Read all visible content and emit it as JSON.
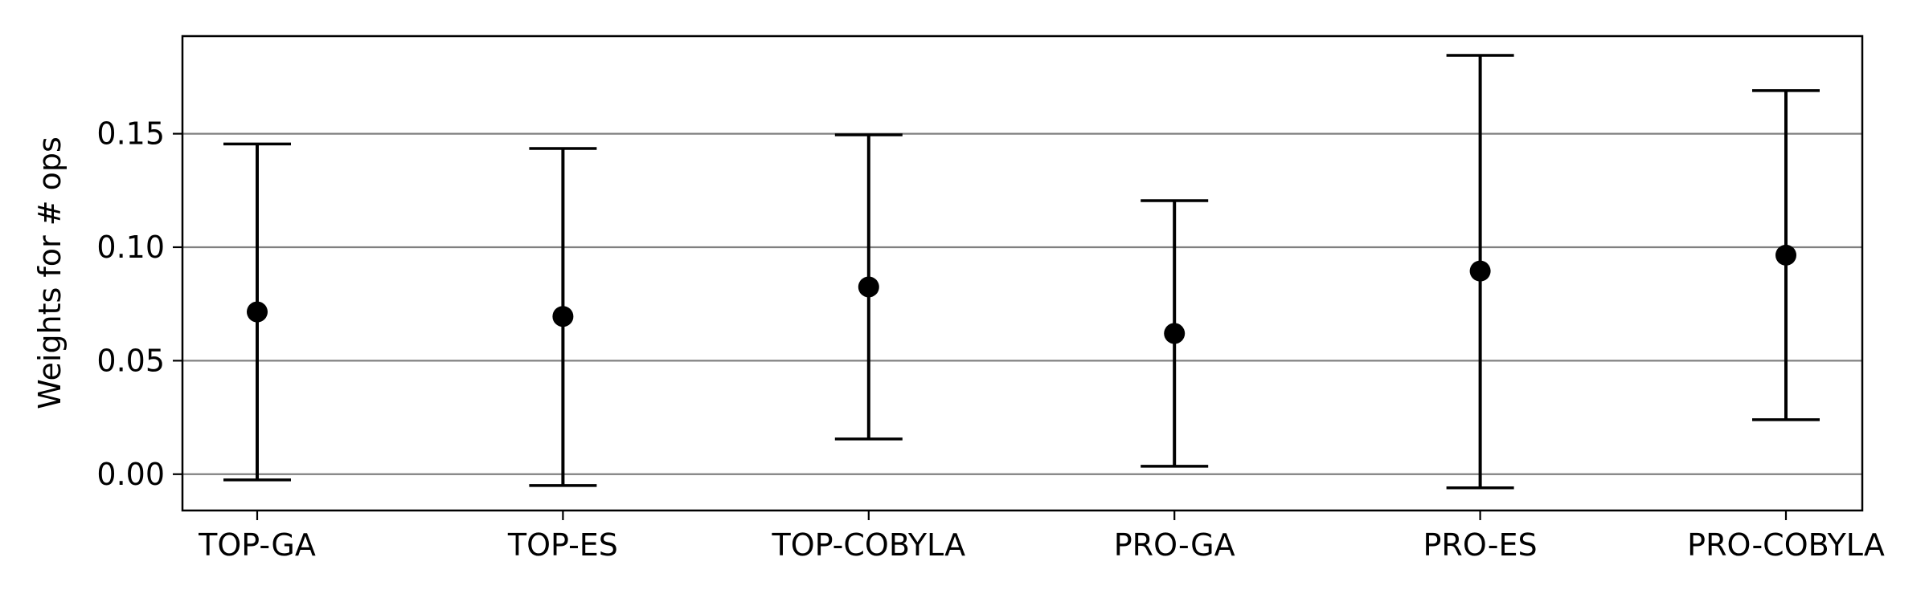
{
  "chart_data": {
    "type": "scatter",
    "subtype": "errorbar",
    "title": "",
    "xlabel": "",
    "ylabel": "Weights for # ops",
    "categories": [
      "TOP-GA",
      "TOP-ES",
      "TOP-COBYLA",
      "PRO-GA",
      "PRO-ES",
      "PRO-COBYLA"
    ],
    "series": [
      {
        "mean": [
          0.0715,
          0.0695,
          0.0825,
          0.062,
          0.0895,
          0.0965
        ],
        "lower": [
          -0.0025,
          -0.005,
          0.0155,
          0.0035,
          -0.006,
          0.024
        ],
        "upper": [
          0.1455,
          0.1435,
          0.1495,
          0.1205,
          0.1845,
          0.169
        ],
        "color": "#000000"
      }
    ],
    "yticks": [
      0.0,
      0.05,
      0.1,
      0.15
    ],
    "ytick_labels": [
      "0.00",
      "0.05",
      "0.10",
      "0.15"
    ],
    "ylim": [
      -0.016,
      0.193
    ],
    "grid": "horizontal",
    "grid_color": "#808080",
    "legend": "none"
  }
}
